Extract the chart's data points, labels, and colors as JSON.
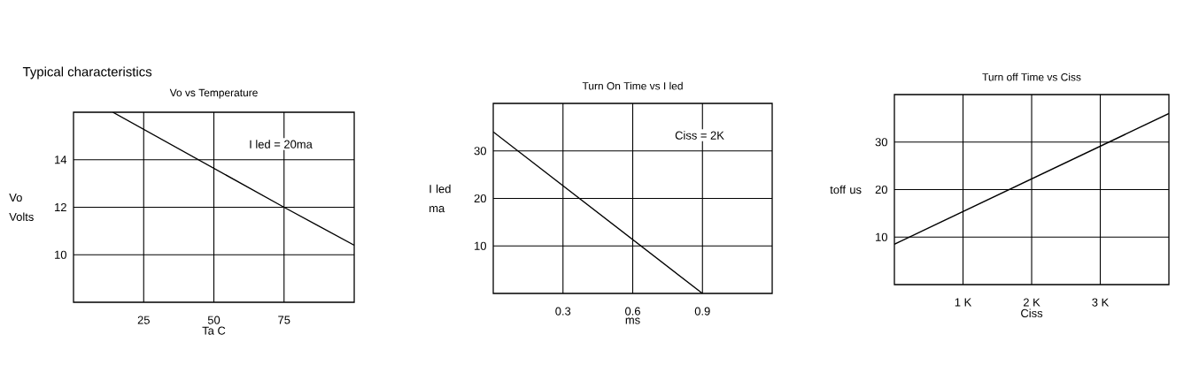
{
  "chart_data": [
    {
      "type": "line",
      "title": "Vo vs  Temperature",
      "xlabel": "Ta   C",
      "ylabel": "Vo Volts",
      "x": [
        14,
        75,
        100
      ],
      "series": [
        {
          "color": "#000000",
          "values": [
            16,
            12,
            10.4
          ]
        }
      ],
      "xlim": [
        0,
        100
      ],
      "ylim": [
        8,
        16
      ],
      "xticks": [
        25,
        50,
        75
      ],
      "yticks": [
        10,
        12,
        14
      ],
      "grid": true,
      "annotations": [
        "Typical characteristics",
        "I led = 20ma"
      ]
    },
    {
      "type": "line",
      "title": "Turn On Time vs I led",
      "xlabel": "ms",
      "ylabel": "I  led ma",
      "x": [
        0,
        0.9
      ],
      "series": [
        {
          "color": "#000000",
          "values": [
            34,
            0
          ]
        }
      ],
      "xlim": [
        0,
        1.2
      ],
      "ylim": [
        0,
        40
      ],
      "xticks": [
        0.3,
        0.6,
        0.9
      ],
      "yticks": [
        10,
        20,
        30
      ],
      "grid": true,
      "annotations": [
        "Ciss = 2K"
      ]
    },
    {
      "type": "line",
      "title": "Turn off Time vs  Ciss",
      "xlabel": "Ciss",
      "ylabel": "toff us",
      "x": [
        0,
        4000
      ],
      "series": [
        {
          "color": "#000000",
          "values": [
            8.5,
            36
          ]
        }
      ],
      "xlim": [
        0,
        4000
      ],
      "ylim": [
        0,
        40
      ],
      "xticks": [
        {
          "value": 1000,
          "label": "1 K"
        },
        {
          "value": 2000,
          "label": "2 K"
        },
        {
          "value": 3000,
          "label": "3 K"
        }
      ],
      "yticks": [
        10,
        20,
        30
      ],
      "grid": true
    }
  ]
}
